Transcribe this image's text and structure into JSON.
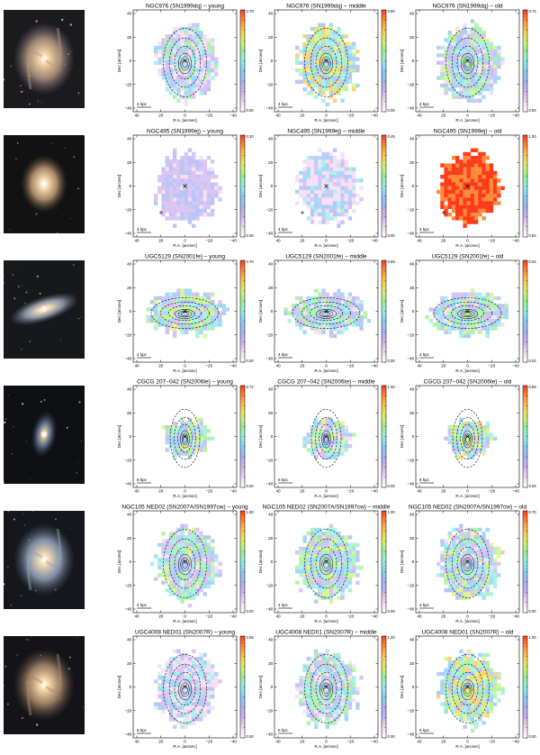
{
  "figure": {
    "x_axis_label": "R.A. [arcsec]",
    "y_axis_label": "Dec [arcsec]",
    "x_ticks": [
      "40",
      "20",
      "0",
      "−20",
      "−40"
    ],
    "y_ticks": [
      "40",
      "20",
      "0",
      "−20",
      "−40"
    ],
    "colormap": [
      "#ffffff",
      "#f3d6f2",
      "#cdb2ef",
      "#a3b4f3",
      "#86cdf5",
      "#8deee3",
      "#9af08a",
      "#d8f06f",
      "#ffc44c",
      "#ff8a3a",
      "#ff3b1c"
    ],
    "contour_color": "#000000",
    "marker_color": "#000000"
  },
  "rows": [
    {
      "galaxy": "NGC976 (SN1999dq)",
      "scale_bar": "4 kpc",
      "thumb": {
        "bg": "#1b1a1d",
        "core": "#efd1a1",
        "mid": "#b79a82",
        "outer": "#6c6a82",
        "shape": "spiral"
      },
      "panels": [
        {
          "title": "NGC976 (SN1999dq) – young",
          "cb_max": "0.78",
          "cb_min": "0.00",
          "level": 0.25
        },
        {
          "title": "NGC976 (SN1999dq) – middle",
          "cb_max": "0.66",
          "cb_min": "0.00",
          "level": 0.5
        },
        {
          "title": "NGC976 (SN1999dq) – old",
          "cb_max": "0.74",
          "cb_min": "0.00",
          "level": 0.35
        }
      ]
    },
    {
      "galaxy": "NGC495 (SN1999ej)",
      "scale_bar": "4 kpc",
      "thumb": {
        "bg": "#121212",
        "core": "#f3dcb7",
        "mid": "#c49f76",
        "outer": "#5d4a3b",
        "shape": "elliptical"
      },
      "panels": [
        {
          "title": "NGC495 (SN1999ej) – young",
          "cb_max": "0.30",
          "cb_min": "0.00",
          "level": 0.08
        },
        {
          "title": "NGC495 (SN1999ej) – middle",
          "cb_max": "0.45",
          "cb_min": "0.00",
          "level": 0.18
        },
        {
          "title": "NGC495 (SN1999ej) – old",
          "cb_max": "1.00",
          "cb_min": "0.52",
          "level": 0.92
        }
      ]
    },
    {
      "galaxy": "UGC5129 (SN2001fe)",
      "scale_bar": "4 kpc",
      "thumb": {
        "bg": "#17181c",
        "core": "#f1dcb4",
        "mid": "#9ca5b8",
        "outer": "#59616e",
        "shape": "edge"
      },
      "panels": [
        {
          "title": "UGC5129 (SN2001fe) – young",
          "cb_max": "0.70",
          "cb_min": "0.00",
          "level": 0.4
        },
        {
          "title": "UGC5129 (SN2001fe) – middle",
          "cb_max": "0.65",
          "cb_min": "0.00",
          "level": 0.3
        },
        {
          "title": "UGC5129 (SN2001fe) – old",
          "cb_max": "0.92",
          "cb_min": "0.02",
          "level": 0.35
        }
      ]
    },
    {
      "galaxy": "CGCG 207−042 (SN2006te)",
      "scale_bar": "6 kpc",
      "thumb": {
        "bg": "#0f1014",
        "core": "#d9c59d",
        "mid": "#5c7091",
        "outer": "#2b3344",
        "shape": "small"
      },
      "panels": [
        {
          "title": "CGCG 207−042 (SN2006te) – young",
          "cb_max": "0.72",
          "cb_min": "0.00",
          "level": 0.4
        },
        {
          "title": "CGCG 207−042 (SN2006te) – middle",
          "cb_max": "1.00",
          "cb_min": "0.00",
          "level": 0.35
        },
        {
          "title": "CGCG 207−042 (SN2006te) – old",
          "cb_max": "0.89",
          "cb_min": "0.00",
          "level": 0.45
        }
      ]
    },
    {
      "galaxy": "NGC105 NED02 (SN2007A/SN1997cw)",
      "scale_bar": "4 kpc",
      "thumb": {
        "bg": "#16171c",
        "core": "#ecd7b0",
        "mid": "#93a3be",
        "outer": "#4a5568",
        "shape": "spiral"
      },
      "panels": [
        {
          "title": "NGC105 NED02 (SN2007A/SN1997cw) – young",
          "cb_max": "1.00",
          "cb_min": "0.00",
          "level": 0.35
        },
        {
          "title": "NGC105 NED02 (SN2007A/SN1997cw) – middle",
          "cb_max": "1.00",
          "cb_min": "0.00",
          "level": 0.4
        },
        {
          "title": "NGC105 NED02 (SN2007A/SN1997cw) – old",
          "cb_max": "0.70",
          "cb_min": "0.00",
          "level": 0.35
        }
      ]
    },
    {
      "galaxy": "UGC4008 NED01 (SN2007R)",
      "scale_bar": "6 kpc",
      "thumb": {
        "bg": "#141418",
        "core": "#f2d4a2",
        "mid": "#ad8b6e",
        "outer": "#4e4741",
        "shape": "spiral"
      },
      "panels": [
        {
          "title": "UGC4008 NED01 (SN2007R) – young",
          "cb_max": "0.55",
          "cb_min": "0.00",
          "level": 0.2
        },
        {
          "title": "UGC4008 NED01 (SN2007R) – middle",
          "cb_max": "1.00",
          "cb_min": "0.00",
          "level": 0.3
        },
        {
          "title": "UGC4008 NED01 (SN2007R) – old",
          "cb_max": "1.00",
          "cb_min": "0.00",
          "level": 0.5
        }
      ]
    }
  ]
}
